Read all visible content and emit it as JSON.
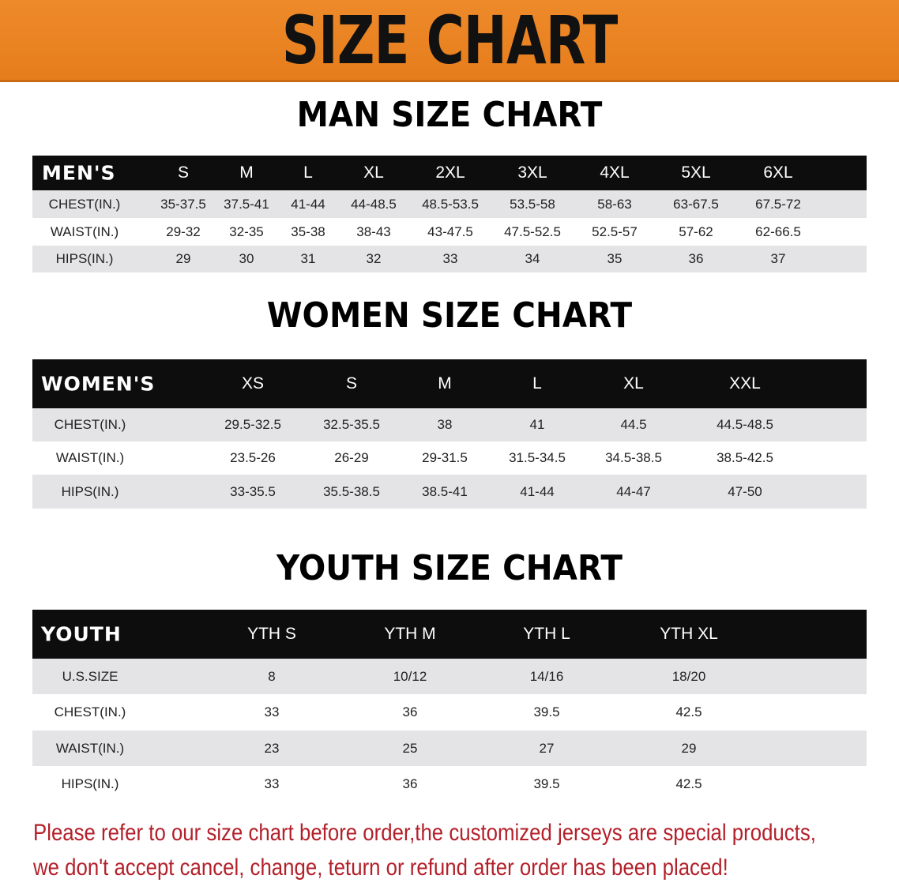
{
  "banner": {
    "title": "SIZE CHART",
    "color": "#e98320"
  },
  "men": {
    "title": "MAN SIZE CHART",
    "header": [
      "MEN'S",
      "S",
      "M",
      "L",
      "XL",
      "2XL",
      "3XL",
      "4XL",
      "5XL",
      "6XL"
    ],
    "rows": [
      [
        "CHEST(IN.)",
        "35-37.5",
        "37.5-41",
        "41-44",
        "44-48.5",
        "48.5-53.5",
        "53.5-58",
        "58-63",
        "63-67.5",
        "67.5-72"
      ],
      [
        "WAIST(IN.)",
        "29-32",
        "32-35",
        "35-38",
        "38-43",
        "43-47.5",
        "47.5-52.5",
        "52.5-57",
        "57-62",
        "62-66.5"
      ],
      [
        "HIPS(IN.)",
        "29",
        "30",
        "31",
        "32",
        "33",
        "34",
        "35",
        "36",
        "37"
      ]
    ]
  },
  "women": {
    "title": "WOMEN SIZE CHART",
    "header": [
      "WOMEN'S",
      "XS",
      "S",
      "M",
      "L",
      "XL",
      "XXL"
    ],
    "rows": [
      [
        "CHEST(IN.)",
        "29.5-32.5",
        "32.5-35.5",
        "38",
        "41",
        "44.5",
        "44.5-48.5"
      ],
      [
        "WAIST(IN.)",
        "23.5-26",
        "26-29",
        "29-31.5",
        "31.5-34.5",
        "34.5-38.5",
        "38.5-42.5"
      ],
      [
        "HIPS(IN.)",
        "33-35.5",
        "35.5-38.5",
        "38.5-41",
        "41-44",
        "44-47",
        "47-50"
      ]
    ]
  },
  "youth": {
    "title": "YOUTH SIZE CHART",
    "header": [
      "YOUTH",
      "YTH S",
      "YTH M",
      "YTH L",
      "YTH XL"
    ],
    "rows": [
      [
        "U.S.SIZE",
        "8",
        "10/12",
        "14/16",
        "18/20"
      ],
      [
        "CHEST(IN.)",
        "33",
        "36",
        "39.5",
        "42.5"
      ],
      [
        "WAIST(IN.)",
        "23",
        "25",
        "27",
        "29"
      ],
      [
        "HIPS(IN.)",
        "33",
        "36",
        "39.5",
        "42.5"
      ]
    ]
  },
  "note": {
    "line1": "Please refer to our size chart before order,the customized jerseys are special products,",
    "line2": "we don't accept cancel, change, teturn or refund after order has been placed!",
    "color": "#b3202a"
  }
}
